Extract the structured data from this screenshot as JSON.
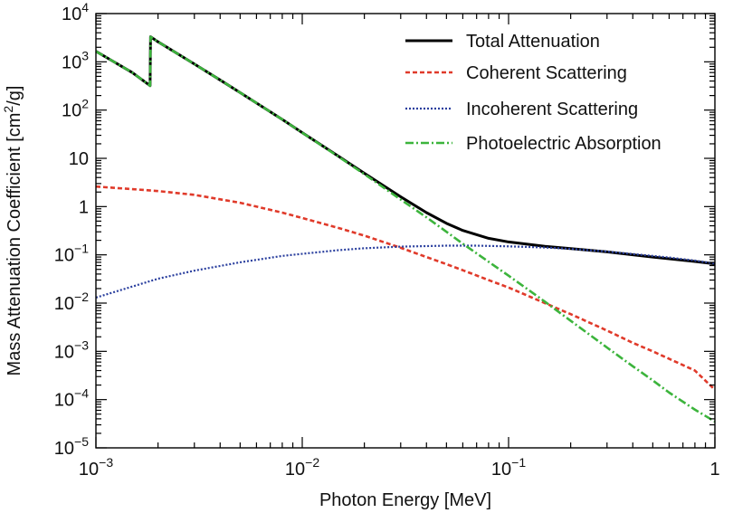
{
  "chart_data": {
    "type": "line",
    "title": "",
    "xlabel": "Photon Energy [MeV]",
    "ylabel": "Mass Attenuation Coefficient [cm²/g]",
    "ylabel_parts": {
      "before": "Mass Attenuation Coefficient [cm",
      "sup": "2",
      "after": "/g]"
    },
    "xscale": "log",
    "yscale": "log",
    "xlim": [
      0.001,
      1
    ],
    "ylim": [
      1e-05,
      10000
    ],
    "grid": false,
    "legend_position": "top-right",
    "x_ticks": [
      {
        "value": 0.001,
        "base": "10",
        "exp": "−3"
      },
      {
        "value": 0.01,
        "base": "10",
        "exp": "−2"
      },
      {
        "value": 0.1,
        "base": "10",
        "exp": "−1"
      },
      {
        "value": 1,
        "base": "1",
        "exp": ""
      }
    ],
    "y_ticks": [
      {
        "value": 1e-05,
        "base": "10",
        "exp": "−5"
      },
      {
        "value": 0.0001,
        "base": "10",
        "exp": "−4"
      },
      {
        "value": 0.001,
        "base": "10",
        "exp": "−3"
      },
      {
        "value": 0.01,
        "base": "10",
        "exp": "−2"
      },
      {
        "value": 0.1,
        "base": "10",
        "exp": "−1"
      },
      {
        "value": 1,
        "base": "1",
        "exp": ""
      },
      {
        "value": 10,
        "base": "10",
        "exp": ""
      },
      {
        "value": 100,
        "base": "10",
        "exp": "2"
      },
      {
        "value": 1000,
        "base": "10",
        "exp": "3"
      },
      {
        "value": 10000,
        "base": "10",
        "exp": "4"
      }
    ],
    "series": [
      {
        "name": "Total Attenuation",
        "color": "#000000",
        "style": "solid",
        "points": [
          [
            0.001,
            1650
          ],
          [
            0.0015,
            600
          ],
          [
            0.00183,
            320
          ],
          [
            0.00184,
            3300
          ],
          [
            0.002,
            2600
          ],
          [
            0.003,
            900
          ],
          [
            0.004,
            420
          ],
          [
            0.005,
            230
          ],
          [
            0.006,
            140
          ],
          [
            0.008,
            64
          ],
          [
            0.01,
            34
          ],
          [
            0.015,
            11
          ],
          [
            0.02,
            4.9
          ],
          [
            0.03,
            1.6
          ],
          [
            0.04,
            0.75
          ],
          [
            0.05,
            0.45
          ],
          [
            0.06,
            0.32
          ],
          [
            0.08,
            0.22
          ],
          [
            0.1,
            0.185
          ],
          [
            0.15,
            0.15
          ],
          [
            0.2,
            0.135
          ],
          [
            0.3,
            0.115
          ],
          [
            0.4,
            0.1
          ],
          [
            0.5,
            0.09
          ],
          [
            0.6,
            0.083
          ],
          [
            0.8,
            0.073
          ],
          [
            1,
            0.065
          ]
        ]
      },
      {
        "name": "Coherent Scattering",
        "color": "#e03a2a",
        "style": "dashed",
        "points": [
          [
            0.001,
            2.6
          ],
          [
            0.0015,
            2.3
          ],
          [
            0.002,
            2.1
          ],
          [
            0.003,
            1.75
          ],
          [
            0.005,
            1.2
          ],
          [
            0.008,
            0.75
          ],
          [
            0.01,
            0.58
          ],
          [
            0.015,
            0.36
          ],
          [
            0.02,
            0.25
          ],
          [
            0.03,
            0.14
          ],
          [
            0.04,
            0.09
          ],
          [
            0.05,
            0.064
          ],
          [
            0.06,
            0.048
          ],
          [
            0.08,
            0.03
          ],
          [
            0.1,
            0.021
          ],
          [
            0.15,
            0.01
          ],
          [
            0.2,
            0.0059
          ],
          [
            0.3,
            0.0027
          ],
          [
            0.4,
            0.0015
          ],
          [
            0.5,
            0.001
          ],
          [
            0.6,
            0.0007
          ],
          [
            0.8,
            0.0004
          ],
          [
            1,
            0.00016
          ]
        ]
      },
      {
        "name": "Incoherent Scattering",
        "color": "#2a3f9e",
        "style": "dotted",
        "points": [
          [
            0.001,
            0.013
          ],
          [
            0.0015,
            0.022
          ],
          [
            0.002,
            0.032
          ],
          [
            0.003,
            0.047
          ],
          [
            0.005,
            0.07
          ],
          [
            0.008,
            0.095
          ],
          [
            0.01,
            0.105
          ],
          [
            0.015,
            0.125
          ],
          [
            0.02,
            0.137
          ],
          [
            0.03,
            0.148
          ],
          [
            0.05,
            0.155
          ],
          [
            0.07,
            0.155
          ],
          [
            0.1,
            0.15
          ],
          [
            0.15,
            0.142
          ],
          [
            0.2,
            0.133
          ],
          [
            0.3,
            0.117
          ],
          [
            0.4,
            0.104
          ],
          [
            0.5,
            0.095
          ],
          [
            0.6,
            0.088
          ],
          [
            0.8,
            0.076
          ],
          [
            1,
            0.066
          ]
        ]
      },
      {
        "name": "Photoelectric Absorption",
        "color": "#3cb43c",
        "style": "dashdot",
        "points": [
          [
            0.001,
            1650
          ],
          [
            0.0015,
            600
          ],
          [
            0.00183,
            320
          ],
          [
            0.00184,
            3300
          ],
          [
            0.002,
            2600
          ],
          [
            0.003,
            900
          ],
          [
            0.004,
            420
          ],
          [
            0.005,
            230
          ],
          [
            0.006,
            140
          ],
          [
            0.008,
            64
          ],
          [
            0.01,
            34
          ],
          [
            0.015,
            10.8
          ],
          [
            0.02,
            4.7
          ],
          [
            0.03,
            1.4
          ],
          [
            0.04,
            0.6
          ],
          [
            0.05,
            0.3
          ],
          [
            0.06,
            0.17
          ],
          [
            0.08,
            0.072
          ],
          [
            0.1,
            0.037
          ],
          [
            0.15,
            0.0107
          ],
          [
            0.2,
            0.0043
          ],
          [
            0.3,
            0.0012
          ],
          [
            0.4,
            0.00049
          ],
          [
            0.5,
            0.00025
          ],
          [
            0.6,
            0.00014
          ],
          [
            0.8,
            6.2e-05
          ],
          [
            1,
            3.5e-05
          ]
        ]
      }
    ]
  }
}
